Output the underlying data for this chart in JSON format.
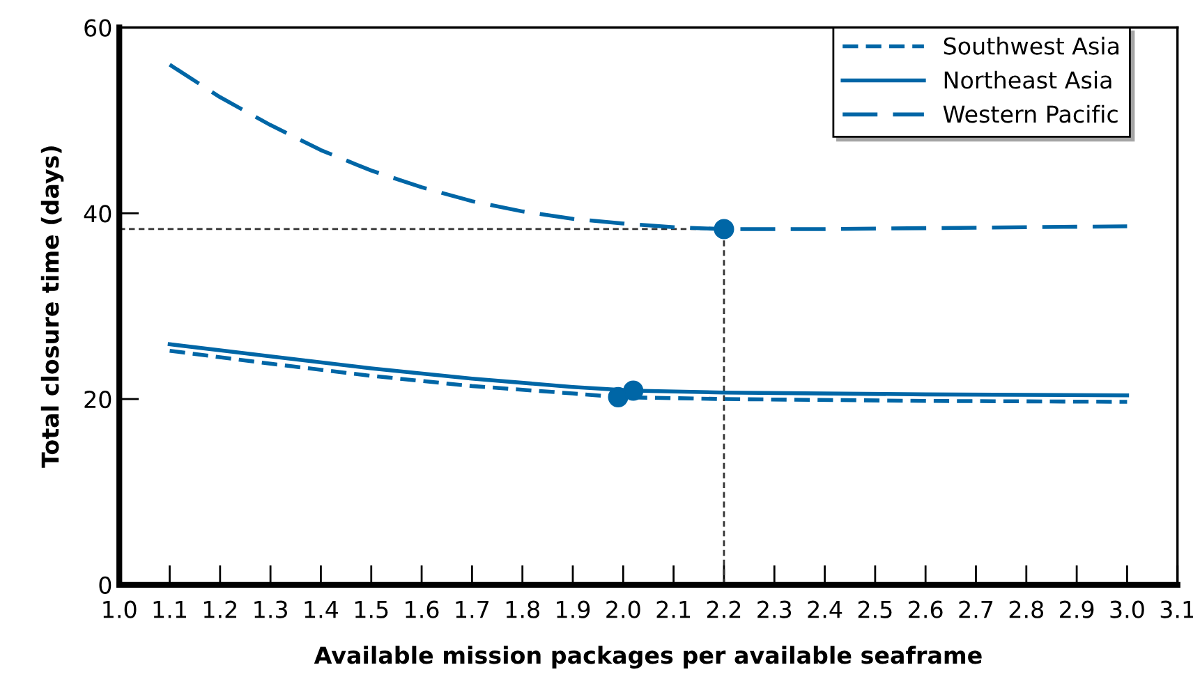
{
  "chart_data": {
    "type": "line",
    "xlabel": "Available mission packages per available seaframe",
    "ylabel": "Total closure time (days)",
    "xlim": [
      1.0,
      3.1
    ],
    "ylim": [
      0,
      60
    ],
    "xticks": [
      {
        "value": 1.0,
        "label": "1.0"
      },
      1.1,
      1.2,
      1.3,
      1.4,
      1.5,
      1.6,
      1.7,
      1.8,
      1.9,
      {
        "value": 2.0,
        "label": "2.0"
      },
      2.1,
      2.2,
      2.3,
      2.4,
      2.5,
      2.6,
      2.7,
      2.8,
      2.9,
      {
        "value": 3.0,
        "label": "3.0"
      },
      3.1
    ],
    "yticks": [
      0,
      20,
      40,
      60
    ],
    "grid": false,
    "legend": "top right",
    "marker": "none",
    "series": [
      {
        "name": "Southwest Asia",
        "color": "#0066a6",
        "line_style": "dashed",
        "x": [
          1.1,
          1.3,
          1.5,
          1.7,
          1.9,
          1.99,
          2.2,
          2.6,
          3.0
        ],
        "values": [
          25.2,
          23.8,
          22.5,
          21.4,
          20.6,
          20.2,
          20.0,
          19.8,
          19.7
        ]
      },
      {
        "name": "Northeast Asia",
        "color": "#0066a6",
        "line_style": "solid",
        "x": [
          1.1,
          1.3,
          1.5,
          1.7,
          1.9,
          2.02,
          2.2,
          2.6,
          3.0
        ],
        "values": [
          25.9,
          24.6,
          23.3,
          22.2,
          21.3,
          20.9,
          20.7,
          20.5,
          20.4
        ]
      },
      {
        "name": "Western Pacific",
        "color": "#0066a6",
        "line_style": "long dashed",
        "x": [
          1.1,
          1.2,
          1.3,
          1.4,
          1.5,
          1.6,
          1.7,
          1.8,
          1.9,
          2.0,
          2.1,
          2.2,
          2.4,
          2.6,
          2.8,
          3.0
        ],
        "values": [
          56,
          52.5,
          49.5,
          46.8,
          44.6,
          42.8,
          41.3,
          40.2,
          39.4,
          38.9,
          38.5,
          38.3,
          38.3,
          38.4,
          38.5,
          38.6
        ]
      },
      {
        "type": "scatter",
        "marker": "circle",
        "color": "#0066a6",
        "x": [
          1.99,
          2.02,
          2.2
        ],
        "values": [
          20.2,
          20.9,
          38.3
        ]
      }
    ],
    "ref_lines": [
      {
        "axis": "y",
        "value": 38.3,
        "color": "#333333",
        "line_style": "dashed"
      },
      {
        "axis": "x",
        "value": 2.2,
        "color": "#333333",
        "line_style": "dashed"
      }
    ]
  }
}
